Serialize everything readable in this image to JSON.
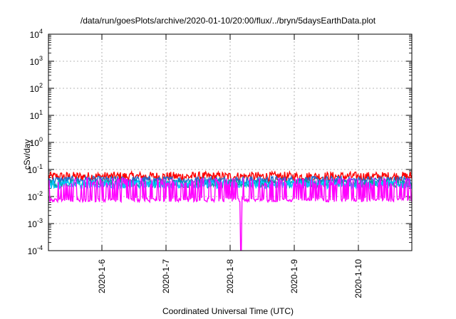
{
  "chart_data": {
    "type": "line",
    "title": "/data/run/goesPlots/archive/2020-01-10/20:00/flux/../bryn/5daysEarthData.plot",
    "xlabel": "Coordinated Universal Time (UTC)",
    "ylabel": "cSv/day",
    "yscale": "log",
    "ylim": [
      0.0001,
      10000
    ],
    "y_ticks": [
      {
        "value": 0.0001,
        "base": "10",
        "exp": "-4"
      },
      {
        "value": 0.001,
        "base": "10",
        "exp": "-3"
      },
      {
        "value": 0.01,
        "base": "10",
        "exp": "-2"
      },
      {
        "value": 0.1,
        "base": "10",
        "exp": "-1"
      },
      {
        "value": 1,
        "base": "10",
        "exp": "0"
      },
      {
        "value": 10,
        "base": "10",
        "exp": "1"
      },
      {
        "value": 100,
        "base": "10",
        "exp": "2"
      },
      {
        "value": 1000,
        "base": "10",
        "exp": "3"
      },
      {
        "value": 10000,
        "base": "10",
        "exp": "4"
      }
    ],
    "xlim": [
      "2020-01-05T04:00",
      "2020-01-10T20:00"
    ],
    "x_ticks": [
      "2020-1-6",
      "2020-1-7",
      "2020-1-8",
      "2020-1-9",
      "2020-1-10"
    ],
    "grid": true,
    "series": [
      {
        "color": "#ff0000",
        "level": 0.055,
        "noise": 0.35
      },
      {
        "color": "#1e6fd0",
        "level": 0.04,
        "noise": 0.3
      },
      {
        "color": "#00a0a0",
        "level": 0.03,
        "noise": 0.3
      },
      {
        "color": "#00c8ff",
        "level": 0.028,
        "noise": 0.3
      },
      {
        "color": "#ff00ff",
        "level": 0.0075,
        "noise": 0.15,
        "spikes_to": 0.035
      }
    ],
    "dip": {
      "x": "2020-01-08T04:00",
      "to": 0.0001
    }
  }
}
